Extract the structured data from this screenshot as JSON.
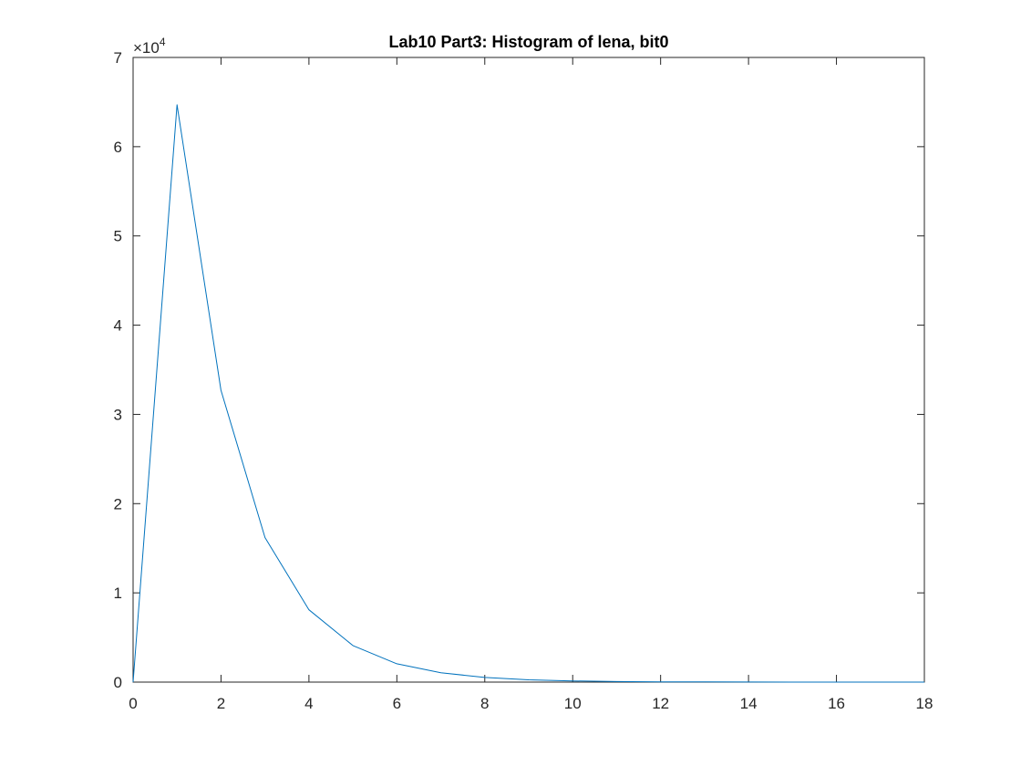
{
  "chart_data": {
    "type": "line",
    "title": "Lab10 Part3: Histogram of lena, bit0",
    "xlabel": "",
    "ylabel": "",
    "xlim": [
      0,
      18
    ],
    "ylim": [
      0,
      70000
    ],
    "x_ticks": [
      0,
      2,
      4,
      6,
      8,
      10,
      12,
      14,
      16,
      18
    ],
    "x_tick_labels": [
      "0",
      "2",
      "4",
      "6",
      "8",
      "10",
      "12",
      "14",
      "16",
      "18"
    ],
    "y_ticks": [
      0,
      10000,
      20000,
      30000,
      40000,
      50000,
      60000,
      70000
    ],
    "y_tick_labels": [
      "0",
      "1",
      "2",
      "3",
      "4",
      "5",
      "6",
      "7"
    ],
    "y_exponent_base": "×10",
    "y_exponent_power": "4",
    "grid": false,
    "series": [
      {
        "color": "#0072BD",
        "x": [
          0,
          1,
          2,
          3,
          4,
          5,
          6,
          7,
          8,
          9,
          10,
          11,
          12,
          13,
          14,
          15,
          16,
          17,
          18
        ],
        "y": [
          0,
          64700,
          32700,
          16200,
          8100,
          4100,
          2050,
          1050,
          520,
          260,
          130,
          65,
          33,
          16,
          8,
          4,
          2,
          1,
          0
        ]
      }
    ]
  }
}
